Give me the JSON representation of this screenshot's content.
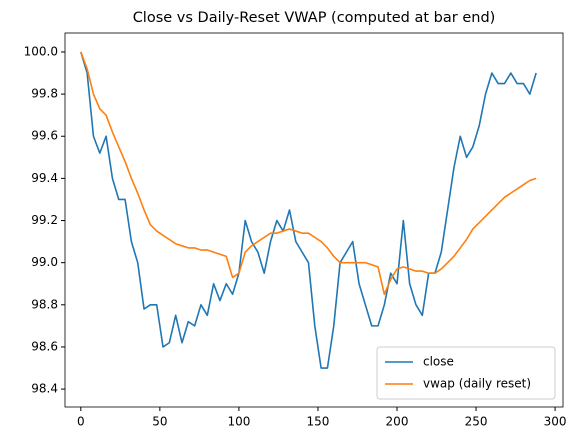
{
  "chart_data": {
    "type": "line",
    "title": "Close vs Daily-Reset VWAP (computed at bar end)",
    "x": [
      0,
      4,
      8,
      12,
      16,
      20,
      24,
      28,
      32,
      36,
      40,
      44,
      48,
      52,
      56,
      60,
      64,
      68,
      72,
      76,
      80,
      84,
      88,
      92,
      96,
      100,
      104,
      108,
      112,
      116,
      120,
      124,
      128,
      132,
      136,
      140,
      144,
      148,
      152,
      156,
      160,
      164,
      168,
      172,
      176,
      180,
      184,
      188,
      192,
      196,
      200,
      204,
      208,
      212,
      216,
      220,
      224,
      228,
      232,
      236,
      240,
      244,
      248,
      252,
      256,
      260,
      264,
      268,
      272,
      276,
      280,
      284,
      288
    ],
    "series": [
      {
        "name": "close",
        "color": "#1f77b4",
        "values": [
          100.0,
          99.9,
          99.6,
          99.52,
          99.6,
          99.4,
          99.3,
          99.3,
          99.1,
          99.0,
          98.78,
          98.8,
          98.8,
          98.6,
          98.62,
          98.75,
          98.62,
          98.72,
          98.7,
          98.8,
          98.75,
          98.9,
          98.82,
          98.9,
          98.85,
          98.95,
          99.2,
          99.1,
          99.05,
          98.95,
          99.1,
          99.2,
          99.15,
          99.25,
          99.1,
          99.05,
          99.0,
          98.7,
          98.5,
          98.5,
          98.7,
          99.0,
          99.05,
          99.1,
          98.9,
          98.8,
          98.7,
          98.7,
          98.8,
          98.95,
          98.9,
          99.2,
          98.9,
          98.8,
          98.75,
          98.95,
          98.95,
          99.05,
          99.25,
          99.45,
          99.6,
          99.5,
          99.55,
          99.65,
          99.8,
          99.9,
          99.85,
          99.85,
          99.9,
          99.85,
          99.85,
          99.8,
          99.9
        ]
      },
      {
        "name": "vwap (daily reset)",
        "color": "#ff7f0e",
        "values": [
          100.0,
          99.92,
          99.8,
          99.73,
          99.7,
          99.62,
          99.55,
          99.48,
          99.4,
          99.33,
          99.25,
          99.18,
          99.15,
          99.13,
          99.11,
          99.09,
          99.08,
          99.07,
          99.07,
          99.06,
          99.06,
          99.05,
          99.04,
          99.03,
          98.93,
          98.95,
          99.05,
          99.08,
          99.1,
          99.12,
          99.14,
          99.14,
          99.15,
          99.16,
          99.15,
          99.14,
          99.14,
          99.12,
          99.1,
          99.07,
          99.03,
          99.0,
          99.0,
          99.0,
          99.0,
          99.0,
          98.99,
          98.98,
          98.85,
          98.92,
          98.97,
          98.98,
          98.97,
          98.96,
          98.96,
          98.95,
          98.95,
          98.97,
          99.0,
          99.03,
          99.07,
          99.11,
          99.16,
          99.19,
          99.22,
          99.25,
          99.28,
          99.31,
          99.33,
          99.35,
          99.37,
          99.39,
          99.4
        ]
      }
    ],
    "xlim": [
      -10,
      305
    ],
    "xticks": [
      0,
      50,
      100,
      150,
      200,
      250,
      300
    ],
    "ylim": [
      98.315,
      100.09
    ],
    "yticks": [
      98.4,
      98.6,
      98.8,
      {
        "value": 99,
        "label": "99.0"
      },
      99.2,
      99.4,
      99.6,
      99.8,
      {
        "value": 100,
        "label": "100.0"
      }
    ],
    "legend": "lower right",
    "grid": false
  }
}
